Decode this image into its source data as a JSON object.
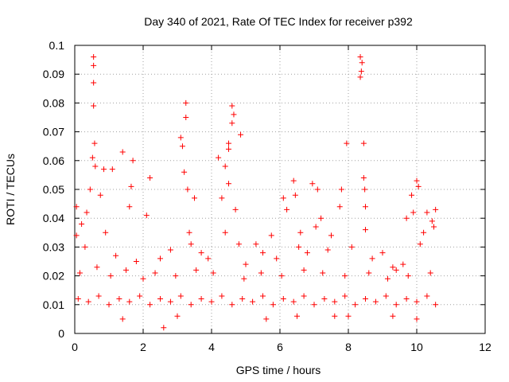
{
  "chart_data": {
    "type": "scatter",
    "title": "Day 340 of 2021, Rate Of TEC Index for receiver p392",
    "xlabel": "GPS time / hours",
    "ylabel": "ROTI / TECUs",
    "xlim": [
      0,
      12
    ],
    "ylim": [
      0,
      0.1
    ],
    "x_ticks": [
      0,
      2,
      4,
      6,
      8,
      10,
      12
    ],
    "x_tick_labels": [
      "0",
      "2",
      "4",
      "6",
      "8",
      "10",
      "12"
    ],
    "y_ticks": [
      0,
      0.01,
      0.02,
      0.03,
      0.04,
      0.05,
      0.06,
      0.07,
      0.08,
      0.09,
      0.1
    ],
    "y_tick_labels": [
      "0",
      "0.01",
      "0.02",
      "0.03",
      "0.04",
      "0.05",
      "0.06",
      "0.07",
      "0.08",
      "0.09",
      "0.1"
    ],
    "grid": true,
    "marker": "+",
    "marker_color": "#ff0000",
    "series": [
      {
        "name": "ROTI",
        "points": [
          [
            0.55,
            0.096
          ],
          [
            0.55,
            0.093
          ],
          [
            0.55,
            0.087
          ],
          [
            0.55,
            0.079
          ],
          [
            0.58,
            0.066
          ],
          [
            0.52,
            0.061
          ],
          [
            0.6,
            0.058
          ],
          [
            0.45,
            0.05
          ],
          [
            0.75,
            0.048
          ],
          [
            0.35,
            0.042
          ],
          [
            0.2,
            0.038
          ],
          [
            0.05,
            0.044
          ],
          [
            0.05,
            0.034
          ],
          [
            0.85,
            0.057
          ],
          [
            1.1,
            0.057
          ],
          [
            1.4,
            0.063
          ],
          [
            1.7,
            0.06
          ],
          [
            1.65,
            0.051
          ],
          [
            1.6,
            0.044
          ],
          [
            2.2,
            0.054
          ],
          [
            2.1,
            0.041
          ],
          [
            3.1,
            0.068
          ],
          [
            3.15,
            0.065
          ],
          [
            3.25,
            0.08
          ],
          [
            3.25,
            0.075
          ],
          [
            3.2,
            0.056
          ],
          [
            3.3,
            0.05
          ],
          [
            3.5,
            0.047
          ],
          [
            3.35,
            0.035
          ],
          [
            3.4,
            0.031
          ],
          [
            4.2,
            0.061
          ],
          [
            4.4,
            0.058
          ],
          [
            4.5,
            0.052
          ],
          [
            4.6,
            0.079
          ],
          [
            4.65,
            0.076
          ],
          [
            4.6,
            0.073
          ],
          [
            4.5,
            0.066
          ],
          [
            4.5,
            0.064
          ],
          [
            4.85,
            0.069
          ],
          [
            4.3,
            0.047
          ],
          [
            4.7,
            0.043
          ],
          [
            4.4,
            0.035
          ],
          [
            4.8,
            0.031
          ],
          [
            5.3,
            0.031
          ],
          [
            5.75,
            0.034
          ],
          [
            6.1,
            0.047
          ],
          [
            6.2,
            0.043
          ],
          [
            6.4,
            0.053
          ],
          [
            6.45,
            0.048
          ],
          [
            6.6,
            0.035
          ],
          [
            6.55,
            0.03
          ],
          [
            6.95,
            0.052
          ],
          [
            7.1,
            0.05
          ],
          [
            7.2,
            0.04
          ],
          [
            7.05,
            0.037
          ],
          [
            7.5,
            0.034
          ],
          [
            7.8,
            0.05
          ],
          [
            7.75,
            0.044
          ],
          [
            7.95,
            0.066
          ],
          [
            8.35,
            0.096
          ],
          [
            8.4,
            0.094
          ],
          [
            8.38,
            0.091
          ],
          [
            8.35,
            0.089
          ],
          [
            8.45,
            0.066
          ],
          [
            8.45,
            0.054
          ],
          [
            8.48,
            0.05
          ],
          [
            8.5,
            0.044
          ],
          [
            8.5,
            0.036
          ],
          [
            9.0,
            0.028
          ],
          [
            9.3,
            0.023
          ],
          [
            9.7,
            0.04
          ],
          [
            9.85,
            0.048
          ],
          [
            10.0,
            0.053
          ],
          [
            10.05,
            0.051
          ],
          [
            9.9,
            0.042
          ],
          [
            10.2,
            0.035
          ],
          [
            10.3,
            0.042
          ],
          [
            10.55,
            0.043
          ],
          [
            10.45,
            0.039
          ],
          [
            10.5,
            0.037
          ],
          [
            0.3,
            0.03
          ],
          [
            0.9,
            0.035
          ],
          [
            1.2,
            0.027
          ],
          [
            1.8,
            0.025
          ],
          [
            2.5,
            0.026
          ],
          [
            2.8,
            0.029
          ],
          [
            3.7,
            0.028
          ],
          [
            3.9,
            0.026
          ],
          [
            5.0,
            0.024
          ],
          [
            5.5,
            0.028
          ],
          [
            5.9,
            0.026
          ],
          [
            6.8,
            0.028
          ],
          [
            7.4,
            0.029
          ],
          [
            8.1,
            0.03
          ],
          [
            8.7,
            0.026
          ],
          [
            9.4,
            0.022
          ],
          [
            9.6,
            0.024
          ],
          [
            10.1,
            0.031
          ],
          [
            0.15,
            0.021
          ],
          [
            0.65,
            0.023
          ],
          [
            1.05,
            0.02
          ],
          [
            1.5,
            0.022
          ],
          [
            2.0,
            0.019
          ],
          [
            2.35,
            0.021
          ],
          [
            2.95,
            0.02
          ],
          [
            3.55,
            0.022
          ],
          [
            4.05,
            0.021
          ],
          [
            4.95,
            0.019
          ],
          [
            5.45,
            0.021
          ],
          [
            6.05,
            0.02
          ],
          [
            6.7,
            0.022
          ],
          [
            7.25,
            0.021
          ],
          [
            7.9,
            0.02
          ],
          [
            8.6,
            0.021
          ],
          [
            9.15,
            0.019
          ],
          [
            9.75,
            0.02
          ],
          [
            10.4,
            0.021
          ],
          [
            0.1,
            0.012
          ],
          [
            0.4,
            0.011
          ],
          [
            0.7,
            0.013
          ],
          [
            1.0,
            0.01
          ],
          [
            1.3,
            0.012
          ],
          [
            1.6,
            0.011
          ],
          [
            1.9,
            0.013
          ],
          [
            2.2,
            0.01
          ],
          [
            2.5,
            0.012
          ],
          [
            2.8,
            0.011
          ],
          [
            3.1,
            0.013
          ],
          [
            3.4,
            0.01
          ],
          [
            3.7,
            0.012
          ],
          [
            4.0,
            0.011
          ],
          [
            4.3,
            0.013
          ],
          [
            4.6,
            0.01
          ],
          [
            4.9,
            0.012
          ],
          [
            5.2,
            0.011
          ],
          [
            5.5,
            0.013
          ],
          [
            5.8,
            0.01
          ],
          [
            6.1,
            0.012
          ],
          [
            6.4,
            0.011
          ],
          [
            6.7,
            0.013
          ],
          [
            7.0,
            0.01
          ],
          [
            7.3,
            0.012
          ],
          [
            7.6,
            0.011
          ],
          [
            7.9,
            0.013
          ],
          [
            8.2,
            0.01
          ],
          [
            8.5,
            0.012
          ],
          [
            8.8,
            0.011
          ],
          [
            9.1,
            0.013
          ],
          [
            9.4,
            0.01
          ],
          [
            9.7,
            0.012
          ],
          [
            10.0,
            0.011
          ],
          [
            10.3,
            0.013
          ],
          [
            10.55,
            0.01
          ],
          [
            2.6,
            0.002
          ],
          [
            1.4,
            0.005
          ],
          [
            3.0,
            0.006
          ],
          [
            5.6,
            0.005
          ],
          [
            6.5,
            0.006
          ],
          [
            7.6,
            0.006
          ],
          [
            8.0,
            0.006
          ],
          [
            9.3,
            0.006
          ],
          [
            10.0,
            0.005
          ]
        ]
      }
    ]
  }
}
